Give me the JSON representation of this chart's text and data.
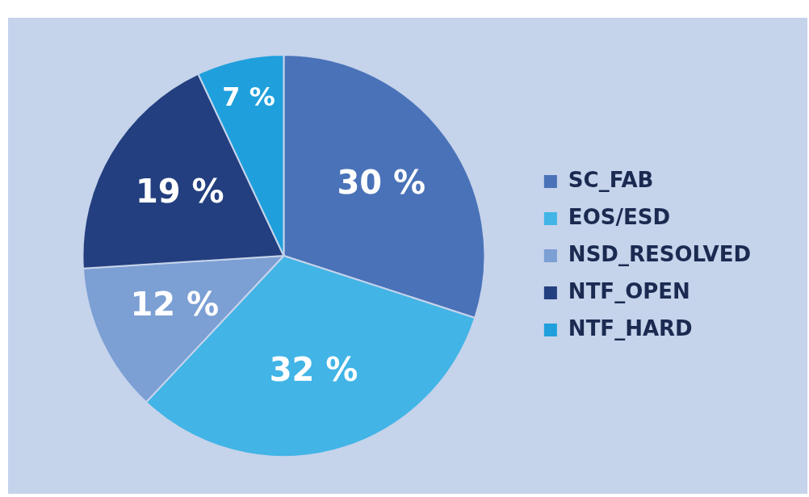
{
  "chart_data": {
    "type": "pie",
    "categories": [
      "SC_FAB",
      "EOS/ESD",
      "NSD_RESOLVED",
      "NTF_OPEN",
      "NTF_HARD"
    ],
    "values": [
      30,
      32,
      12,
      19,
      7
    ],
    "colors": [
      "#4a72b8",
      "#42b4e6",
      "#7c9fd4",
      "#233f7f",
      "#1fa0dc"
    ],
    "value_labels": [
      "30 %",
      "32 %",
      "12 %",
      "19 %",
      "7 %"
    ],
    "legend": "right"
  }
}
